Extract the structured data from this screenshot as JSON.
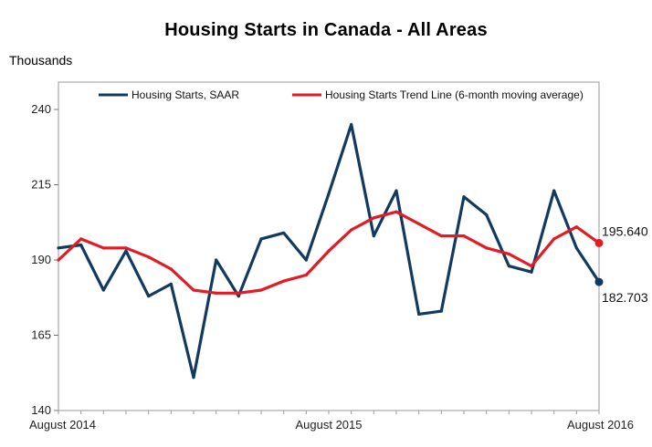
{
  "chart_data": {
    "type": "line",
    "title": "Housing Starts in Canada - All Areas",
    "ylabel": "Thousands",
    "xlabel": "",
    "ylim": [
      140,
      245
    ],
    "yticks": [
      140,
      165,
      190,
      215,
      240
    ],
    "grid": false,
    "legend_position": "top",
    "x_labels": [
      {
        "index": 0,
        "label": "August 2014"
      },
      {
        "index": 12,
        "label": "August 2015"
      },
      {
        "index": 24,
        "label": "August 2016"
      }
    ],
    "series": [
      {
        "name": "Housing Starts, SAAR",
        "color": "#123a5e",
        "values": [
          194,
          195,
          180,
          193,
          178,
          182,
          151,
          190,
          178,
          197,
          199,
          190,
          212,
          235,
          198,
          213,
          172,
          173,
          211,
          205,
          188,
          186,
          213,
          194,
          182.703
        ]
      },
      {
        "name": "Housing Starts Trend Line (6-month moving average)",
        "color": "#e31b25",
        "values": [
          190,
          197,
          194,
          194,
          191,
          187,
          180,
          179,
          179,
          180,
          183,
          185,
          193,
          200,
          204,
          206,
          202,
          198,
          198,
          194,
          192,
          188,
          197,
          201,
          195.64
        ]
      }
    ],
    "annotations": [
      {
        "series": 1,
        "index": 24,
        "text": "195.640"
      },
      {
        "series": 0,
        "index": 24,
        "text": "182.703"
      }
    ]
  }
}
